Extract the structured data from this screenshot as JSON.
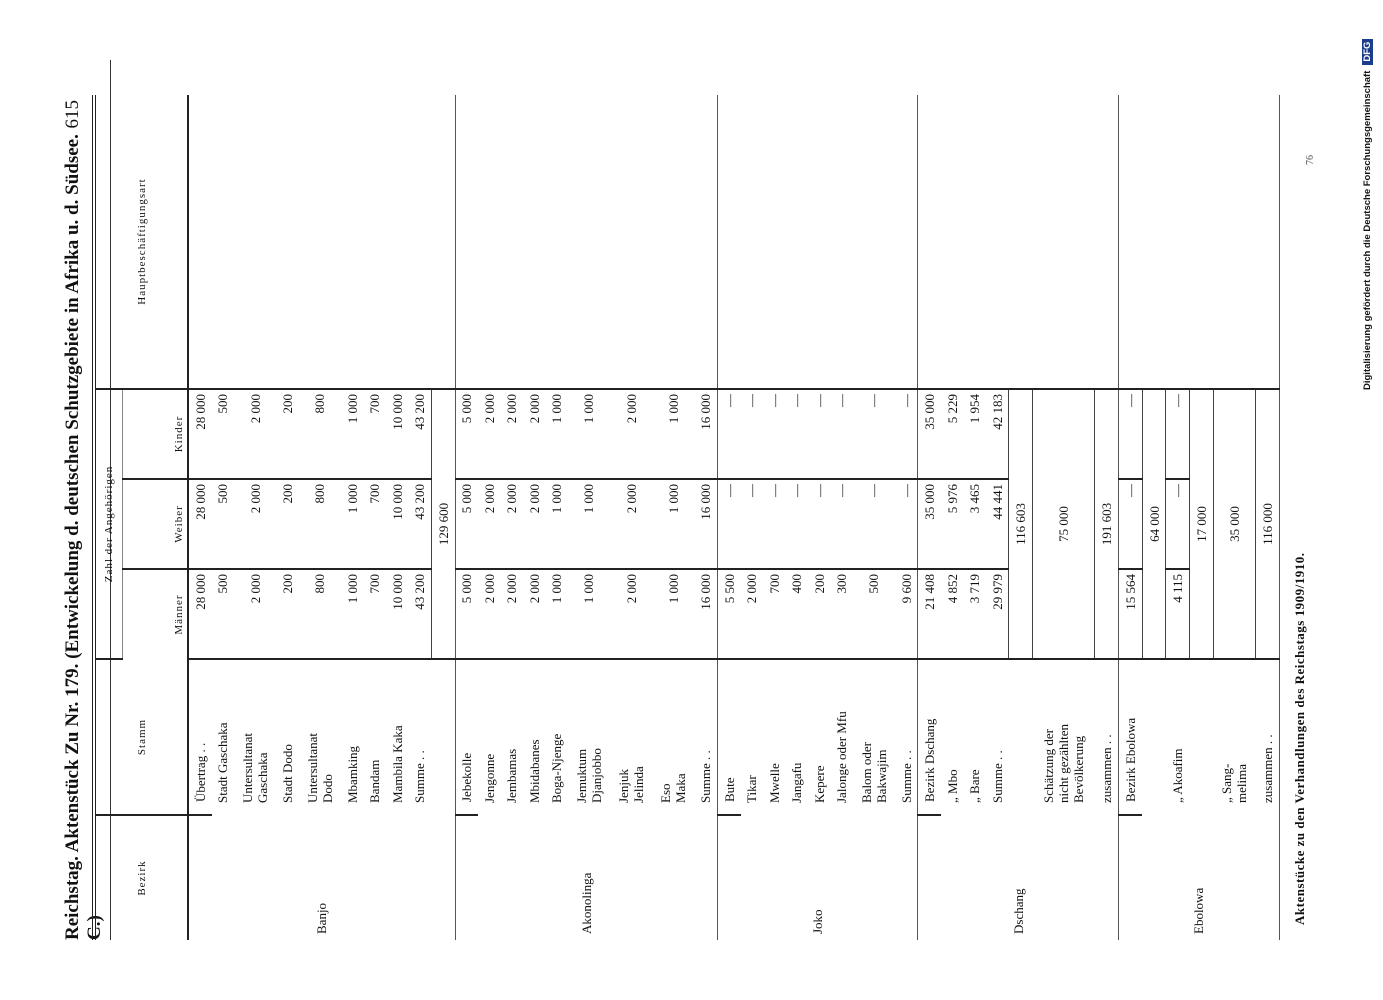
{
  "header": {
    "title": "Reichstag. Aktenstück Zu Nr. 179. (Entwickelung d. deutschen Schutzgebiete in Afrika u. d. Südsee. C.)",
    "page": "615"
  },
  "table": {
    "columns": {
      "bezirk": "Bezirk",
      "stamm": "Stamm",
      "group": "Zahl der Angehörigen",
      "maenner": "Männer",
      "weiber": "Weiber",
      "kinder": "Kinder",
      "beschaeftigung": "Hauptbeschäftigungsart"
    },
    "sections": [
      {
        "bezirk": "Banjo",
        "rows": [
          {
            "stamm": [
              "Übertrag . ."
            ],
            "maenner": "28 000",
            "weiber": "28 000",
            "kinder": "28 000"
          },
          {
            "stamm": [
              "Stadt Gaschaka"
            ],
            "maenner": "500",
            "weiber": "500",
            "kinder": "500"
          },
          {
            "stamm": [
              "Untersultanat",
              "Gaschaka"
            ],
            "maenner": "2 000",
            "weiber": "2 000",
            "kinder": "2 000"
          },
          {
            "stamm": [
              "Stadt Dodo"
            ],
            "maenner": "200",
            "weiber": "200",
            "kinder": "200"
          },
          {
            "stamm": [
              "Untersultanat",
              "Dodo"
            ],
            "maenner": "800",
            "weiber": "800",
            "kinder": "800"
          },
          {
            "stamm": [
              "Mbamking"
            ],
            "maenner": "1 000",
            "weiber": "1 000",
            "kinder": "1 000"
          },
          {
            "stamm": [
              "Bandam"
            ],
            "maenner": "700",
            "weiber": "700",
            "kinder": "700"
          },
          {
            "stamm": [
              "Mambila Kaka"
            ],
            "maenner": "10 000",
            "weiber": "10 000",
            "kinder": "10 000"
          },
          {
            "stamm": [
              "Summe . ."
            ],
            "maenner": "43 200",
            "weiber": "43 200",
            "kinder": "43 200"
          },
          {
            "total": "129 600"
          }
        ]
      },
      {
        "bezirk": "Akonolinga",
        "rows": [
          {
            "stamm": [
              "Jebekolle"
            ],
            "maenner": "5 000",
            "weiber": "5 000",
            "kinder": "5 000"
          },
          {
            "stamm": [
              "Jengonne"
            ],
            "maenner": "2 000",
            "weiber": "2 000",
            "kinder": "2 000"
          },
          {
            "stamm": [
              "Jembamas"
            ],
            "maenner": "2 000",
            "weiber": "2 000",
            "kinder": "2 000"
          },
          {
            "stamm": [
              "Mbidabanes"
            ],
            "maenner": "2 000",
            "weiber": "2 000",
            "kinder": "2 000"
          },
          {
            "stamm": [
              "Boga-Njenge"
            ],
            "maenner": "1 000",
            "weiber": "1 000",
            "kinder": "1 000"
          },
          {
            "stamm": [
              "Jemuktum",
              "Djanjobbo"
            ],
            "maenner": "1 000",
            "weiber": "1 000",
            "kinder": "1 000"
          },
          {
            "stamm": [
              "Jenjuk",
              "Jelinda"
            ],
            "maenner": "2 000",
            "weiber": "2 000",
            "kinder": "2 000"
          },
          {
            "stamm": [
              "Eso",
              "Maka"
            ],
            "maenner": "1 000",
            "weiber": "1 000",
            "kinder": "1 000"
          },
          {
            "stamm": [
              "Summe . ."
            ],
            "maenner": "16 000",
            "weiber": "16 000",
            "kinder": "16 000"
          }
        ]
      },
      {
        "bezirk": "Joko",
        "rows": [
          {
            "stamm": [
              "Bute"
            ],
            "maenner": "5 500",
            "weiber": "—",
            "kinder": "—"
          },
          {
            "stamm": [
              "Tikar"
            ],
            "maenner": "2 000",
            "weiber": "—",
            "kinder": "—"
          },
          {
            "stamm": [
              "Mwelle"
            ],
            "maenner": "700",
            "weiber": "—",
            "kinder": "—"
          },
          {
            "stamm": [
              "Jangafu"
            ],
            "maenner": "400",
            "weiber": "—",
            "kinder": "—"
          },
          {
            "stamm": [
              "Kepere"
            ],
            "maenner": "200",
            "weiber": "—",
            "kinder": "—"
          },
          {
            "stamm": [
              "Jalonge oder Mfu"
            ],
            "maenner": "300",
            "weiber": "—",
            "kinder": "—"
          },
          {
            "stamm": [
              "Balom oder",
              "Bakwajim"
            ],
            "maenner": "500",
            "weiber": "—",
            "kinder": "—"
          },
          {
            "stamm": [
              "Summe . ."
            ],
            "maenner": "9 600",
            "weiber": "—",
            "kinder": "—"
          }
        ]
      },
      {
        "bezirk": "Dschang",
        "rows": [
          {
            "stamm": [
              "Bezirk Dschang"
            ],
            "maenner": "21 408",
            "weiber": "35 000",
            "kinder": "35 000"
          },
          {
            "stamm": [
              "„ Mbo"
            ],
            "maenner": "4 852",
            "weiber": "5 976",
            "kinder": "5 229"
          },
          {
            "stamm": [
              "„ Bare"
            ],
            "maenner": "3 719",
            "weiber": "3 465",
            "kinder": "1 954"
          },
          {
            "stamm": [
              "Summe . ."
            ],
            "maenner": "29 979",
            "weiber": "44 441",
            "kinder": "42 183"
          },
          {
            "total": "116 603"
          },
          {
            "stamm": [
              "Schätzung der",
              "nicht gezählten",
              "Bevölkerung"
            ],
            "total": "75 000"
          },
          {
            "stamm": [
              "zusammen . ."
            ],
            "total": "191 603"
          }
        ]
      },
      {
        "bezirk": "Ebolowa",
        "rows": [
          {
            "stamm": [
              "Bezirk Ebolowa"
            ],
            "maenner": "15 564",
            "weiber": "—",
            "kinder": "—"
          },
          {
            "total": "64 000"
          },
          {
            "stamm": [
              "„ Akoafim"
            ],
            "maenner": "4 115",
            "weiber": "—",
            "kinder": "—"
          },
          {
            "total": "17 000"
          },
          {
            "stamm": [
              "„ Sang-",
              "melima"
            ],
            "total": "35 000"
          },
          {
            "stamm": [
              "zusammen . ."
            ],
            "total": "116 000"
          }
        ]
      }
    ]
  },
  "footer": "Aktenstücke zu den Verhandlungen des Reichstags 1909/1910.",
  "sidebar": {
    "text": "Digitalisierung gefördert durch die Deutsche Forschungsgemeinschaft",
    "logo": "DFG",
    "number": "76"
  }
}
